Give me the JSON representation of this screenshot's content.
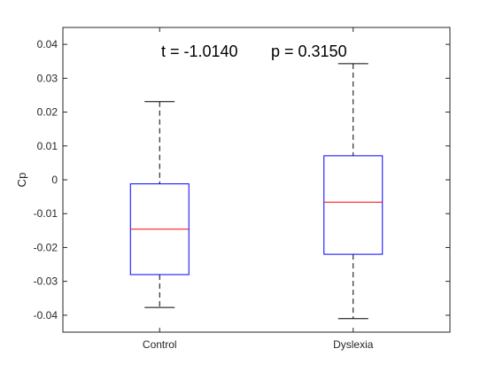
{
  "chart_data": {
    "type": "box",
    "categories": [
      "Control",
      "Dyslexia"
    ],
    "ylabel": "Cp",
    "xlabel": "",
    "ylim": [
      -0.045,
      0.045
    ],
    "yticks": [
      -0.04,
      -0.03,
      -0.02,
      -0.01,
      0,
      0.01,
      0.02,
      0.03,
      0.04
    ],
    "ytick_labels": [
      "-0.04",
      "-0.03",
      "-0.02",
      "-0.01",
      "0",
      "0.01",
      "0.02",
      "0.03",
      "0.04"
    ],
    "grid": false,
    "boxes": [
      {
        "category": "Control",
        "whisker_low": -0.0377,
        "q1": -0.028,
        "median": -0.0146,
        "q3": -0.0012,
        "whisker_high": 0.0231
      },
      {
        "category": "Dyslexia",
        "whisker_low": -0.041,
        "q1": -0.022,
        "median": -0.0066,
        "q3": 0.0071,
        "whisker_high": 0.0343
      }
    ],
    "annotations": [
      {
        "text": "t = -1.0140"
      },
      {
        "text": "p = 0.3150"
      }
    ],
    "colors": {
      "box": "#0000ff",
      "median": "#ff0000",
      "whisker": "#000000"
    }
  }
}
